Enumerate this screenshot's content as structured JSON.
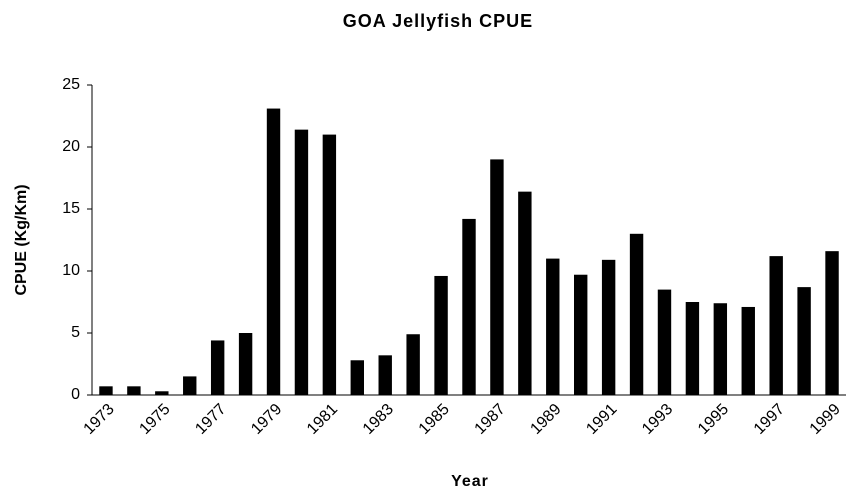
{
  "chart_data": {
    "type": "bar",
    "title": "GOA Jellyfish CPUE",
    "x_label": "Year",
    "y_label": "CPUE (Kg/Km)",
    "categories": [
      "1973",
      null,
      "1975",
      null,
      "1977",
      null,
      "1979",
      null,
      "1981",
      null,
      "1983",
      null,
      "1985",
      null,
      "1987",
      null,
      "1989",
      null,
      "1991",
      null,
      "1993",
      null,
      "1995",
      null,
      "1997",
      null,
      "1999"
    ],
    "values": [
      0.7,
      0.7,
      0.3,
      1.5,
      4.4,
      5.0,
      23.1,
      21.4,
      21.0,
      2.8,
      3.2,
      4.9,
      9.6,
      14.2,
      19.0,
      16.4,
      11.0,
      9.7,
      10.9,
      13.0,
      8.5,
      7.5,
      7.4,
      7.1,
      11.2,
      8.7,
      11.6
    ],
    "color": "#000000",
    "ylim": [
      0,
      25
    ],
    "yticks": [
      0,
      5,
      10,
      15,
      20,
      25
    ],
    "grid": false
  }
}
